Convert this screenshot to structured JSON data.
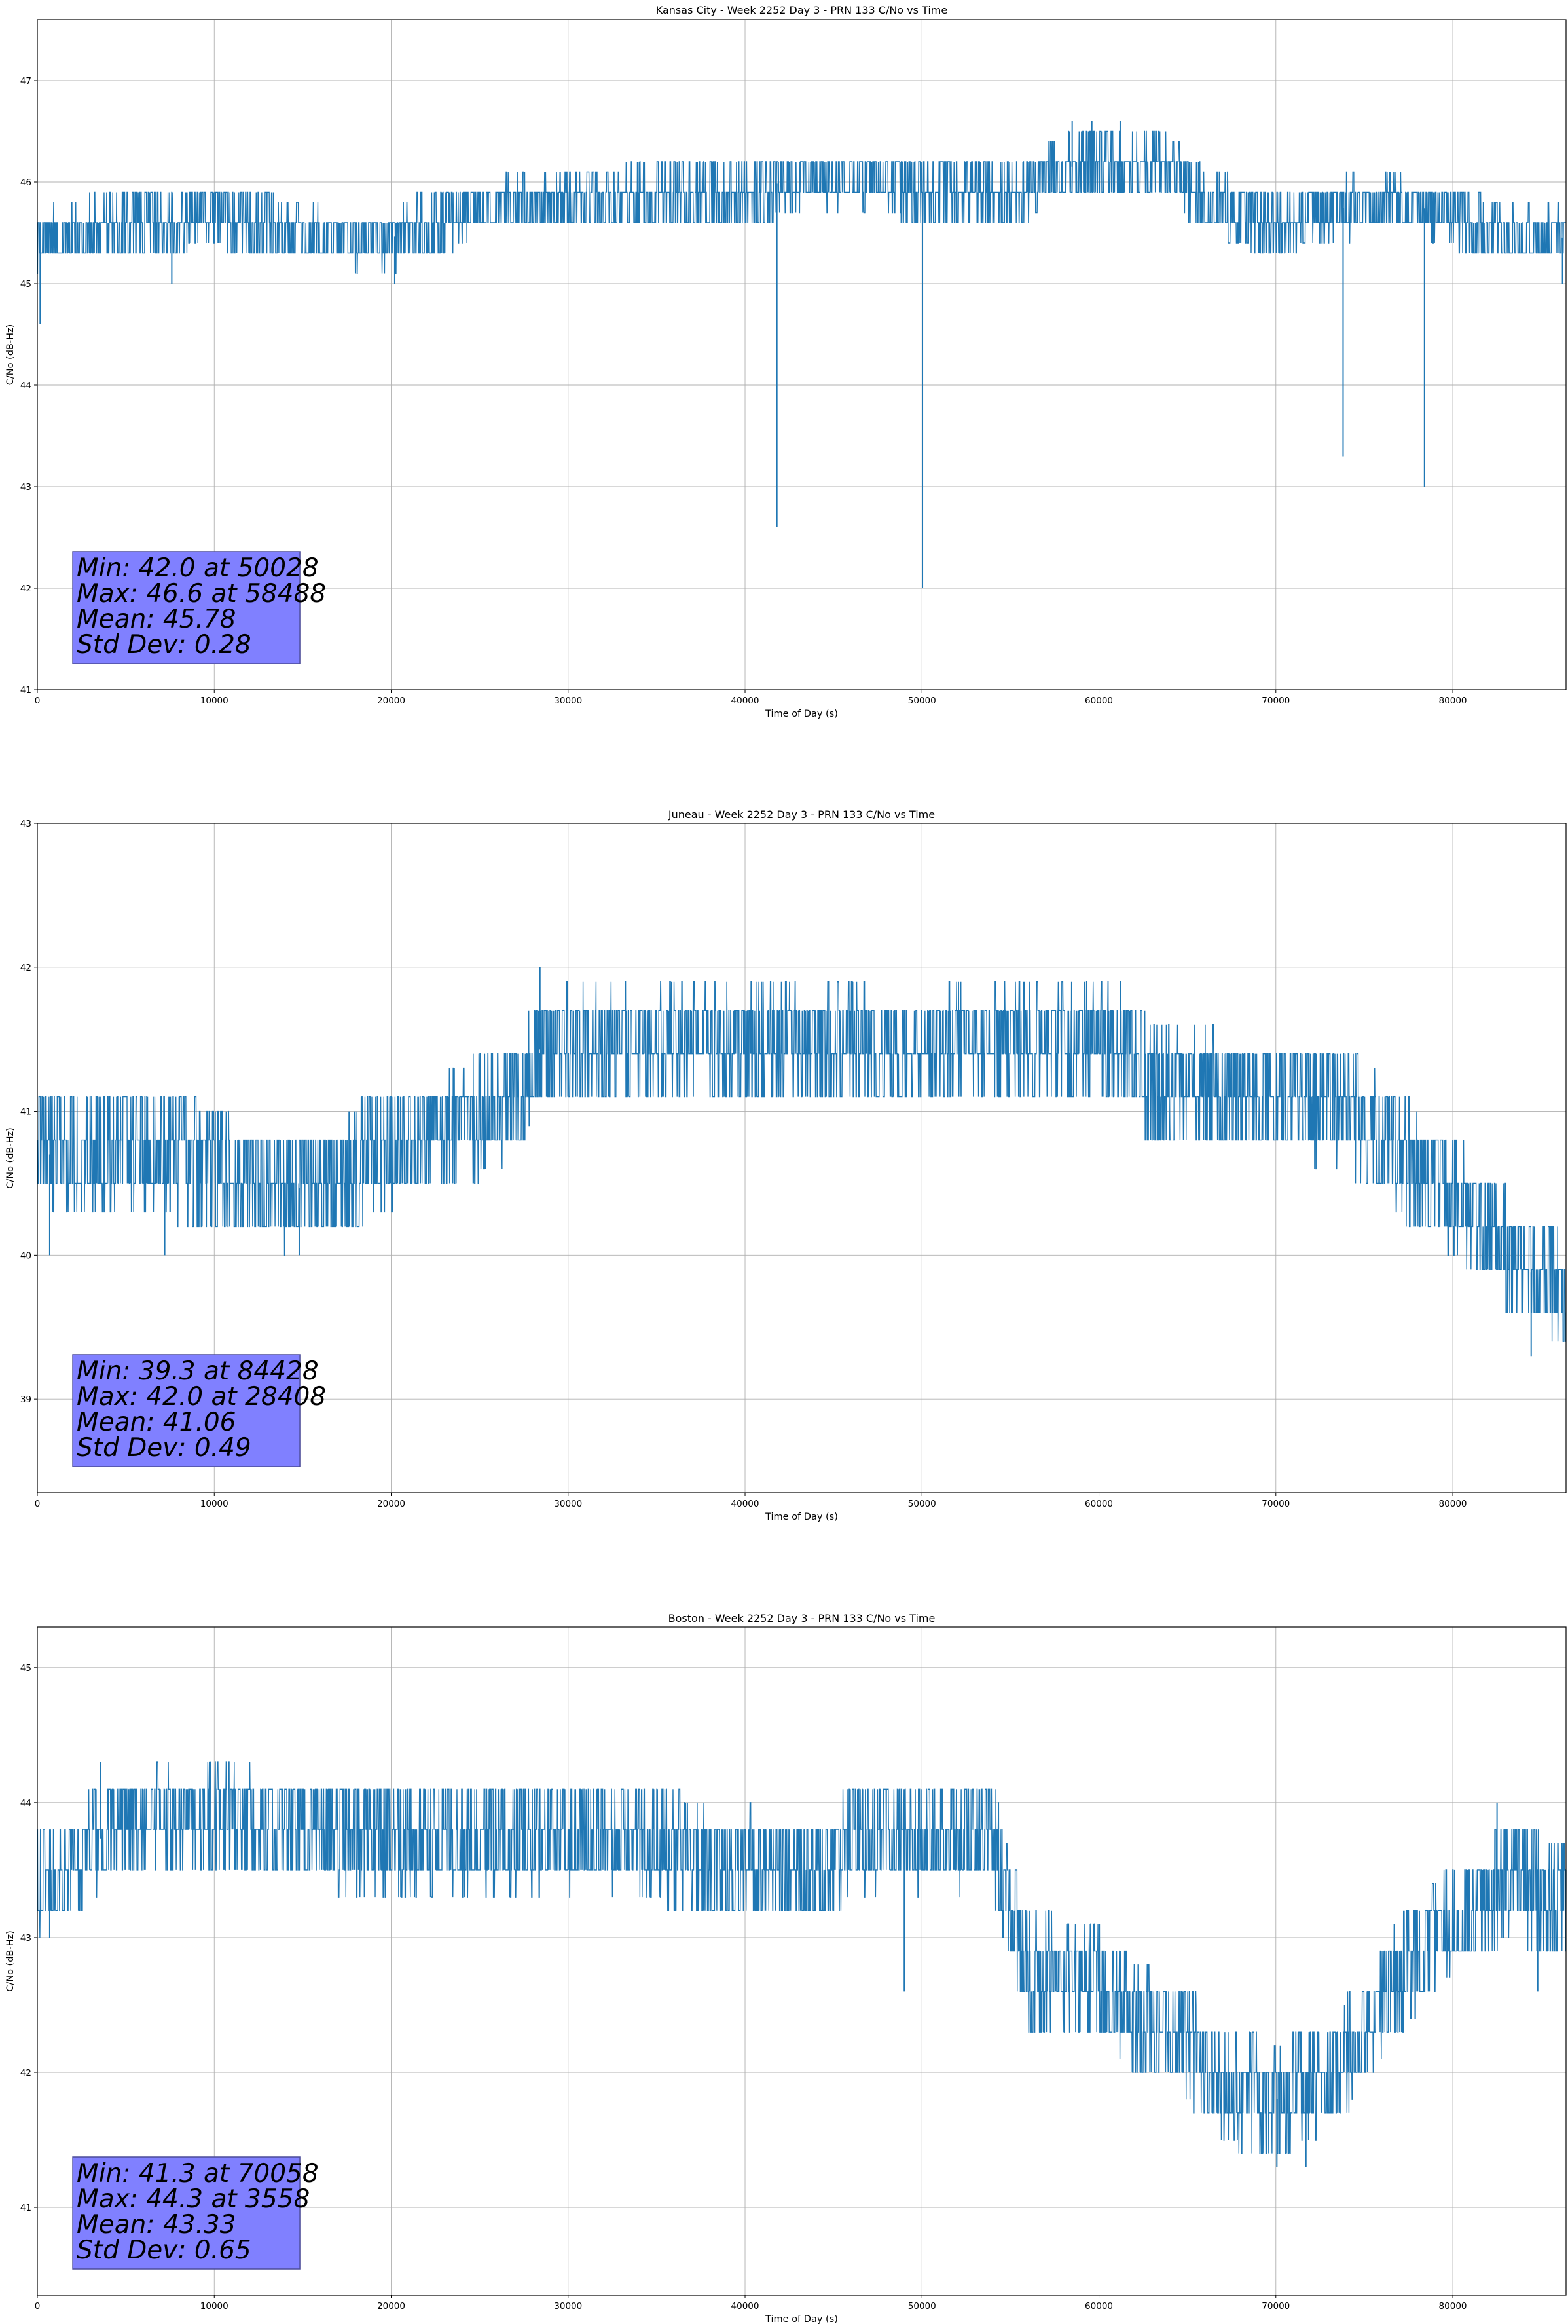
{
  "figure": {
    "background": "#ffffff"
  },
  "colors": {
    "line": "#1f77b4",
    "grid": "#b0b0b0",
    "stats_box_fill": "#8080ff",
    "stats_box_edge": "#4c4c99"
  },
  "chart_data": [
    {
      "type": "line",
      "title": "Kansas City - Week 2252 Day 3 - PRN 133 C/No vs Time",
      "xlabel": "Time of Day (s)",
      "ylabel": "C/No (dB-Hz)",
      "xlim": [
        0,
        86400
      ],
      "ylim": [
        41,
        47.6
      ],
      "grid": true,
      "x_ticks": [
        0,
        10000,
        20000,
        30000,
        40000,
        50000,
        60000,
        70000,
        80000
      ],
      "y_ticks": [
        41,
        42,
        43,
        44,
        45,
        46,
        47
      ],
      "stats_lines": [
        "Min: 42.0 at 50028",
        "Max: 46.6 at 58488",
        "Mean: 45.78",
        "Std Dev: 0.28"
      ],
      "series": [
        {
          "values_note_x": "seconds",
          "base_profile": [
            [
              0,
              45.45
            ],
            [
              5000,
              45.6
            ],
            [
              10000,
              45.7
            ],
            [
              15000,
              45.45
            ],
            [
              20000,
              45.45
            ],
            [
              25000,
              45.75
            ],
            [
              30000,
              45.8
            ],
            [
              35000,
              45.85
            ],
            [
              40000,
              45.85
            ],
            [
              42000,
              46.0
            ],
            [
              48000,
              46.05
            ],
            [
              50000,
              45.85
            ],
            [
              56000,
              45.95
            ],
            [
              58000,
              46.15
            ],
            [
              64000,
              46.15
            ],
            [
              66000,
              45.8
            ],
            [
              70000,
              45.6
            ],
            [
              72000,
              45.7
            ],
            [
              76000,
              45.8
            ],
            [
              80000,
              45.7
            ],
            [
              82000,
              45.5
            ],
            [
              86400,
              45.45
            ]
          ],
          "spread": 0.32,
          "step": 0.3,
          "spikes": [
            [
              160,
              44.6
            ],
            [
              7600,
              45.0
            ],
            [
              20200,
              45.0
            ],
            [
              41800,
              42.6
            ],
            [
              50028,
              42.0
            ],
            [
              58488,
              46.6
            ],
            [
              59600,
              46.6
            ],
            [
              61200,
              46.6
            ],
            [
              73800,
              43.3
            ],
            [
              78400,
              43.0
            ],
            [
              86200,
              45.0
            ]
          ]
        }
      ]
    },
    {
      "type": "line",
      "title": "Juneau - Week 2252 Day 3 - PRN 133 C/No vs Time",
      "xlabel": "Time of Day (s)",
      "ylabel": "C/No (dB-Hz)",
      "xlim": [
        0,
        86400
      ],
      "ylim": [
        38.35,
        43
      ],
      "grid": true,
      "x_ticks": [
        0,
        10000,
        20000,
        30000,
        40000,
        50000,
        60000,
        70000,
        80000
      ],
      "y_ticks": [
        39,
        40,
        41,
        42,
        43
      ],
      "stats_lines": [
        "Min: 39.3 at 84428",
        "Max: 42.0 at 28408",
        "Mean: 41.06",
        "Std Dev: 0.49"
      ],
      "series": [
        {
          "base_profile": [
            [
              0,
              40.7
            ],
            [
              7000,
              40.7
            ],
            [
              10000,
              40.6
            ],
            [
              14000,
              40.45
            ],
            [
              16000,
              40.5
            ],
            [
              20000,
              40.75
            ],
            [
              24000,
              40.9
            ],
            [
              27000,
              41.1
            ],
            [
              28500,
              41.45
            ],
            [
              40000,
              41.5
            ],
            [
              50000,
              41.45
            ],
            [
              55000,
              41.5
            ],
            [
              61000,
              41.5
            ],
            [
              63000,
              41.2
            ],
            [
              70000,
              41.1
            ],
            [
              74000,
              41.0
            ],
            [
              78000,
              40.6
            ],
            [
              80000,
              40.4
            ],
            [
              82000,
              40.2
            ],
            [
              84000,
              39.9
            ],
            [
              86400,
              39.8
            ]
          ],
          "spread": 0.42,
          "step": 0.3,
          "spikes": [
            [
              700,
              40.0
            ],
            [
              7200,
              40.0
            ],
            [
              14800,
              40.0
            ],
            [
              28408,
              42.0
            ],
            [
              84428,
              39.3
            ]
          ]
        }
      ]
    },
    {
      "type": "line",
      "title": "Boston - Week 2252 Day 3 - PRN 133 C/No vs Time",
      "xlabel": "Time of Day (s)",
      "ylabel": "C/No (dB-Hz)",
      "xlim": [
        0,
        86400
      ],
      "ylim": [
        40.35,
        45.3
      ],
      "grid": true,
      "x_ticks": [
        0,
        10000,
        20000,
        30000,
        40000,
        50000,
        60000,
        70000,
        80000
      ],
      "y_ticks": [
        41,
        42,
        43,
        44,
        45
      ],
      "stats_lines": [
        "Min: 41.3 at 70058",
        "Max: 44.3 at 3558",
        "Mean: 43.33",
        "Std Dev: 0.65"
      ],
      "series": [
        {
          "base_profile": [
            [
              0,
              43.45
            ],
            [
              2000,
              43.5
            ],
            [
              4000,
              43.8
            ],
            [
              10000,
              43.9
            ],
            [
              15000,
              43.8
            ],
            [
              20000,
              43.7
            ],
            [
              30000,
              43.75
            ],
            [
              35000,
              43.7
            ],
            [
              38000,
              43.55
            ],
            [
              45000,
              43.5
            ],
            [
              46000,
              43.75
            ],
            [
              54000,
              43.75
            ],
            [
              55000,
              43.15
            ],
            [
              56000,
              42.75
            ],
            [
              60000,
              42.7
            ],
            [
              62000,
              42.4
            ],
            [
              65000,
              42.2
            ],
            [
              67000,
              41.9
            ],
            [
              70000,
              41.8
            ],
            [
              73000,
              41.95
            ],
            [
              75000,
              42.3
            ],
            [
              77000,
              42.7
            ],
            [
              80000,
              43.15
            ],
            [
              83000,
              43.4
            ],
            [
              86400,
              43.3
            ]
          ],
          "spread": 0.42,
          "step": 0.3,
          "spikes": [
            [
              700,
              43.0
            ],
            [
              3558,
              44.3
            ],
            [
              49000,
              42.6
            ],
            [
              70058,
              41.3
            ],
            [
              71700,
              41.3
            ],
            [
              82500,
              44.0
            ],
            [
              84800,
              42.6
            ]
          ]
        }
      ]
    }
  ]
}
